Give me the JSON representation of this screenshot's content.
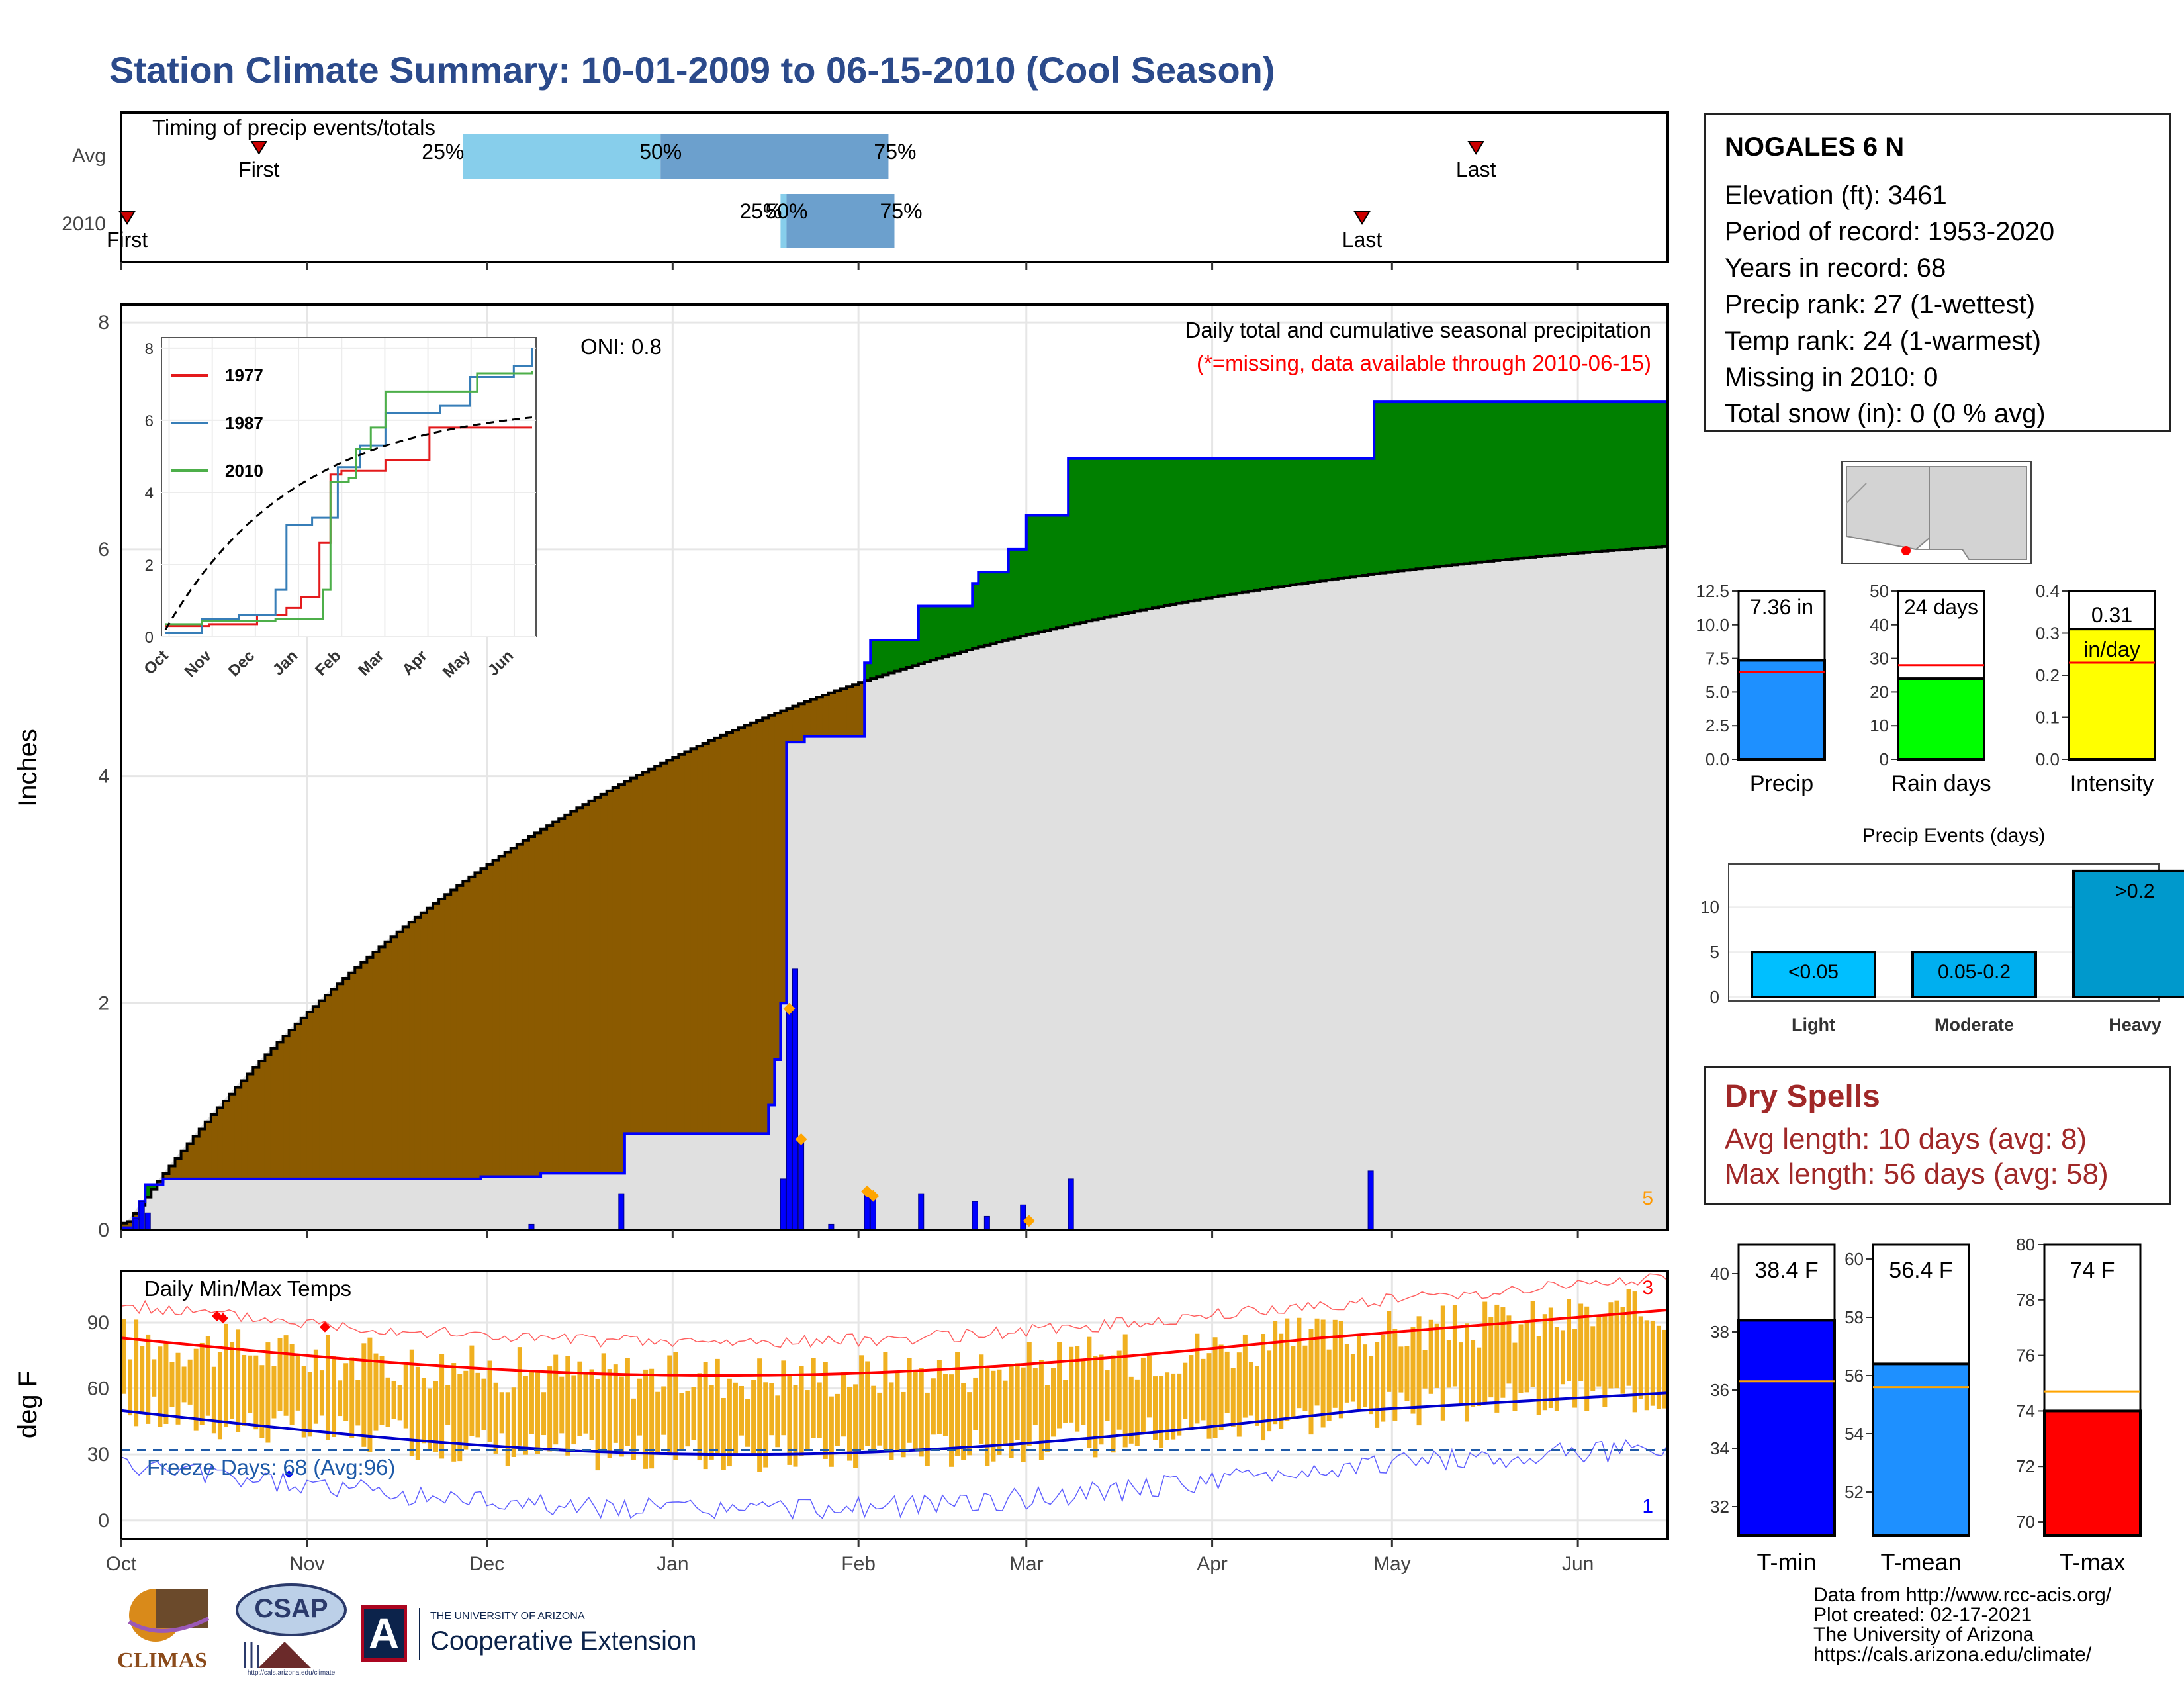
{
  "title": "Station Climate Summary: 10-01-2009 to 06-15-2010 (Cool Season)",
  "colors": {
    "title": "#2b4a8b",
    "precip_fill": "#008000",
    "deficit_fill": "#8b5a00",
    "avg_fill": "#e0e0e0",
    "cum_line": "#0000ff",
    "temp_bar": "#f0b020"
  },
  "timing": {
    "label": "Timing of precip events/totals",
    "rows": [
      {
        "name": "Avg",
        "first": "First",
        "last": "Last",
        "p25": "25%",
        "p50": "50%",
        "p75": "75%",
        "first_day": 23,
        "last_day": 226,
        "q25_day": 57,
        "q50_day": 90,
        "q75_day": 128
      },
      {
        "name": "2010",
        "first": "First",
        "last": "Last",
        "p25": "25%",
        "p50": "50%",
        "p75": "75%",
        "first_day": 1,
        "last_day": 207,
        "q25_day": 110,
        "q50_day": 111,
        "q75_day": 129
      }
    ]
  },
  "station": {
    "name": "NOGALES 6 N",
    "lines": [
      "Elevation (ft): 3461",
      "Period of record: 1953-2020",
      "Years in record: 68",
      "Precip rank: 27 (1-wettest)",
      "Temp rank: 24 (1-warmest)",
      "Missing in 2010: 0",
      "Total snow (in): 0 (0 % avg)"
    ]
  },
  "precip_panel": {
    "title": "Daily total and cumulative seasonal precipitation",
    "subtitle": "(*=missing, data available through 2010-06-15)",
    "oni": "ONI: 0.8",
    "ylabel": "Inches",
    "yticks": [
      "0",
      "2",
      "4",
      "6",
      "8"
    ],
    "corner_count": "5",
    "months": [
      "Oct",
      "Nov",
      "Dec",
      "Jan",
      "Feb",
      "Mar",
      "Apr",
      "May",
      "Jun"
    ],
    "month_starts": [
      0,
      31,
      61,
      92,
      123,
      151,
      182,
      212,
      243
    ],
    "n_days": 258
  },
  "inset": {
    "yticks": [
      "0",
      "2",
      "4",
      "6",
      "8"
    ],
    "months": [
      "Oct",
      "Nov",
      "Dec",
      "Jan",
      "Feb",
      "Mar",
      "Apr",
      "May",
      "Jun"
    ],
    "legend": [
      {
        "name": "1977",
        "color": "#e41a1c"
      },
      {
        "name": "1987",
        "color": "#377eb8"
      },
      {
        "name": "2010",
        "color": "#4daf4a"
      }
    ]
  },
  "temp_panel": {
    "title": "Daily Min/Max Temps",
    "ylabel": "deg F",
    "yticks": [
      "0",
      "30",
      "60",
      "90"
    ],
    "freeze": "Freeze Days: 68 (Avg:96)",
    "top_count": "3",
    "bottom_count": "1",
    "months": [
      "Oct",
      "Nov",
      "Dec",
      "Jan",
      "Feb",
      "Mar",
      "Apr",
      "May",
      "Jun"
    ]
  },
  "summary_bars": [
    {
      "label": "Precip",
      "value_text": "7.36 in",
      "value": 7.36,
      "avg": 6.5,
      "ymax": 12.5,
      "yticks": [
        "0.0",
        "2.5",
        "5.0",
        "7.5",
        "10.0",
        "12.5"
      ],
      "color": "#1e90ff"
    },
    {
      "label": "Rain days",
      "value_text": "24 days",
      "value": 24,
      "avg": 28,
      "ymax": 50,
      "yticks": [
        "0",
        "10",
        "20",
        "30",
        "40",
        "50"
      ],
      "color": "#00ff00"
    },
    {
      "label": "Intensity",
      "value_text": "0.31 in/day",
      "value": 0.31,
      "avg": 0.23,
      "ymax": 0.4,
      "yticks": [
        "0.0",
        "0.1",
        "0.2",
        "0.3",
        "0.4"
      ],
      "color": "#ffff00"
    }
  ],
  "events": {
    "title": "Precip Events (days)",
    "yticks": [
      "0",
      "5",
      "10"
    ],
    "bars": [
      {
        "category": "Light",
        "label": "<0.05",
        "value": 5
      },
      {
        "category": "Moderate",
        "label": "0.05-0.2",
        "value": 5
      },
      {
        "category": "Heavy",
        "label": ">0.2",
        "value": 14
      }
    ]
  },
  "dry_spells": {
    "title": "Dry Spells",
    "avg": "Avg length: 10 days (avg: 8)",
    "max": "Max length: 56 days (avg: 58)"
  },
  "temp_bars": [
    {
      "label": "T-min",
      "value_text": "38.4 F",
      "value": 38.4,
      "avg": 36.3,
      "ymin": 31,
      "ymax": 41,
      "ticks": [
        "32",
        "34",
        "36",
        "38",
        "40"
      ],
      "color": "#0000ff"
    },
    {
      "label": "T-mean",
      "value_text": "56.4 F",
      "value": 56.4,
      "avg": 55.6,
      "ymin": 50.5,
      "ymax": 60.5,
      "ticks": [
        "52",
        "54",
        "56",
        "58",
        "60"
      ],
      "color": "#1e90ff"
    },
    {
      "label": "T-max",
      "value_text": "74 F",
      "value": 74,
      "avg": 74.7,
      "ymin": 69.5,
      "ymax": 80,
      "ticks": [
        "70",
        "72",
        "74",
        "76",
        "78",
        "80"
      ],
      "color": "#ff0000"
    }
  ],
  "footer": [
    "Data from http://www.rcc-acis.org/",
    "Plot created: 02-17-2021",
    "The University of Arizona",
    "https://cals.arizona.edu/climate/"
  ],
  "logos": {
    "climas": "CLIMAS",
    "csap": "CSAP",
    "csap_url": "http://cals.arizona.edu/climate",
    "ua_line1": "THE UNIVERSITY OF ARIZONA",
    "ua_line2": "Cooperative Extension",
    "ua_mark": "A"
  }
}
